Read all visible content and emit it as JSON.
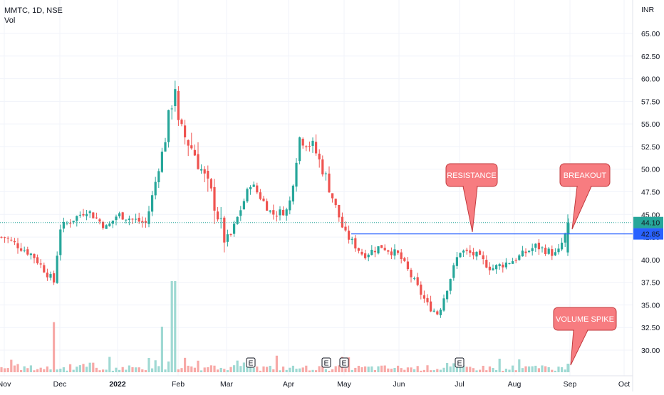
{
  "header": {
    "symbol_line": "MMTC, 1D, NSE",
    "volume_label": "Vol"
  },
  "axis": {
    "currency": "INR"
  },
  "colors": {
    "up": "#26a69a",
    "down": "#ef5350",
    "up_volume": "#9fd9d3",
    "down_volume": "#f7a9a7",
    "resistance_line": "#2962ff",
    "callout_fill": "#f77c80",
    "callout_stroke": "#c23a3e"
  },
  "chart_data": {
    "type": "candlestick",
    "title": "MMTC, 1D, NSE",
    "ylim": [
      27.5,
      66.0
    ],
    "y_ticks": [
      "65.00",
      "62.50",
      "60.00",
      "57.50",
      "55.00",
      "52.50",
      "50.00",
      "47.50",
      "45.00",
      "42.50",
      "40.00",
      "37.50",
      "35.00",
      "32.50",
      "30.00"
    ],
    "x_ticks": [
      "Nov",
      "Dec",
      "2022",
      "Feb",
      "Mar",
      "Apr",
      "May",
      "Jun",
      "Jul",
      "Aug",
      "Sep",
      "Oct"
    ],
    "x_tick_bold": "2022",
    "price_labels": [
      {
        "value": 44.1,
        "text": "44.10",
        "color": "#26a69a"
      },
      {
        "value": 42.85,
        "text": "42.85",
        "color": "#2962ff"
      }
    ],
    "resistance_level": 42.85,
    "resistance_start": "May",
    "anchors": [
      {
        "t": "Nov",
        "v": 42.5
      },
      {
        "t": "mid-Nov",
        "v": 40.5
      },
      {
        "t": "late-Nov",
        "v": 37.5
      },
      {
        "t": "Dec",
        "v": 43.5
      },
      {
        "t": "mid-Dec",
        "v": 45.5
      },
      {
        "t": "late-Dec",
        "v": 43.5
      },
      {
        "t": "2022",
        "v": 45.0
      },
      {
        "t": "mid-Jan",
        "v": 44.0
      },
      {
        "t": "late-Jan",
        "v": 52.0
      },
      {
        "t": "Feb",
        "v": 61.0
      },
      {
        "t": "early-Feb",
        "v": 55.5
      },
      {
        "t": "mid-Feb",
        "v": 52.0
      },
      {
        "t": "late-Feb",
        "v": 46.5
      },
      {
        "t": "Mar",
        "v": 41.5
      },
      {
        "t": "mid-Mar",
        "v": 48.5
      },
      {
        "t": "late-Mar",
        "v": 45.0
      },
      {
        "t": "Apr",
        "v": 45.5
      },
      {
        "t": "early-Apr",
        "v": 53.5
      },
      {
        "t": "mid-Apr",
        "v": 52.5
      },
      {
        "t": "late-Apr",
        "v": 49.0
      },
      {
        "t": "May",
        "v": 43.0
      },
      {
        "t": "mid-May",
        "v": 40.5
      },
      {
        "t": "late-May",
        "v": 41.5
      },
      {
        "t": "Jun",
        "v": 40.5
      },
      {
        "t": "mid-Jun",
        "v": 35.0
      },
      {
        "t": "late-Jun",
        "v": 34.0
      },
      {
        "t": "Jul",
        "v": 41.0
      },
      {
        "t": "mid-Jul",
        "v": 40.5
      },
      {
        "t": "late-Jul",
        "v": 39.0
      },
      {
        "t": "Aug",
        "v": 40.0
      },
      {
        "t": "mid-Aug",
        "v": 41.5
      },
      {
        "t": "late-Aug",
        "v": 40.5
      },
      {
        "t": "Sep",
        "v": 44.1
      }
    ],
    "volume_spikes": [
      {
        "t": "early-Feb",
        "value": 1.0
      },
      {
        "t": "late-Jan",
        "value": 0.5
      },
      {
        "t": "late-Nov",
        "value": 0.55
      }
    ],
    "earnings_markers": [
      {
        "t": "mid-Mar",
        "label": "E"
      },
      {
        "t": "late-Apr",
        "label": "E"
      },
      {
        "t": "May",
        "label": "E"
      },
      {
        "t": "Jul",
        "label": "E"
      }
    ],
    "annotations": [
      {
        "text": "RESISTANCE",
        "target_t": "Jul",
        "target_v": 42.85
      },
      {
        "text": "BREAKOUT",
        "target_t": "late-Aug",
        "target_v": 43.5
      },
      {
        "text": "VOLUME SPIKE",
        "target_t": "late-Aug",
        "target_v": 28.5
      }
    ]
  }
}
